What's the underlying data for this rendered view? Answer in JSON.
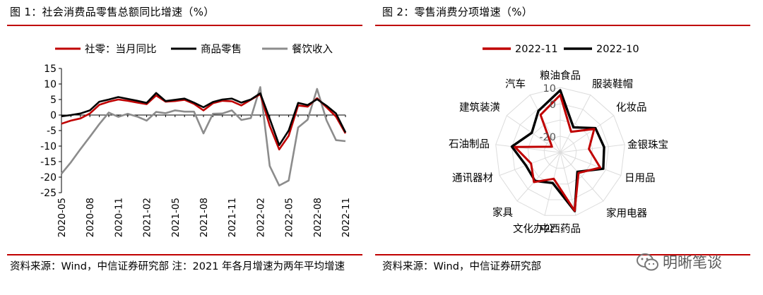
{
  "left_panel": {
    "title": "图 1：社会消费品零售总额同比增速（%）",
    "source": "资料来源：Wind，中信证券研究部 注：2021 年各月增速为两年平均增速"
  },
  "right_panel": {
    "title": "图 2：零售消费分项增速（%）",
    "source": "资料来源：Wind，中信证券研究部"
  },
  "watermark": {
    "text": "明晰笔谈",
    "icon": "wechat-icon"
  },
  "colors": {
    "red": "#c00000",
    "black": "#000000",
    "gray": "#8c8c8c",
    "rule": "#c00000"
  },
  "chart_data": [
    {
      "type": "line",
      "title": "图 1：社会消费品零售总额同比增速（%）",
      "legend_position": "top",
      "x": [
        "2020-05",
        "2020-06",
        "2020-07",
        "2020-08",
        "2020-09",
        "2020-10",
        "2020-11",
        "2020-12",
        "2021-01",
        "2021-02",
        "2021-03",
        "2021-04",
        "2021-05",
        "2021-06",
        "2021-07",
        "2021-08",
        "2021-09",
        "2021-10",
        "2021-11",
        "2021-12",
        "2022-01",
        "2022-02",
        "2022-03",
        "2022-04",
        "2022-05",
        "2022-06",
        "2022-07",
        "2022-08",
        "2022-09",
        "2022-10",
        "2022-11"
      ],
      "x_tick_labels": [
        "2020-05",
        "2020-08",
        "2020-11",
        "2021-02",
        "2021-05",
        "2021-08",
        "2021-11",
        "2022-02",
        "2022-05",
        "2022-08",
        "2022-11"
      ],
      "ylim": [
        -25,
        15
      ],
      "y_ticks": [
        15,
        10,
        5,
        0,
        -5,
        -10,
        -15,
        -20,
        -25
      ],
      "series": [
        {
          "name": "社零：当月同比",
          "color": "#c00000",
          "values": [
            -2.8,
            -1.8,
            -1.1,
            0.5,
            3.3,
            4.3,
            5.0,
            4.6,
            4.0,
            3.5,
            6.3,
            4.3,
            4.5,
            4.9,
            3.6,
            1.5,
            3.8,
            4.6,
            4.4,
            3.1,
            4.9,
            6.7,
            -3.5,
            -11.1,
            -6.7,
            3.1,
            2.7,
            5.4,
            2.5,
            -0.5,
            -5.9
          ]
        },
        {
          "name": "商品零售",
          "color": "#000000",
          "values": [
            -0.4,
            0.0,
            0.5,
            1.5,
            4.3,
            5.0,
            5.8,
            5.2,
            4.6,
            3.9,
            7.1,
            4.5,
            4.9,
            5.3,
            4.0,
            2.5,
            4.2,
            5.0,
            5.3,
            4.0,
            5.0,
            7.0,
            -1.2,
            -9.7,
            -5.0,
            3.9,
            3.2,
            5.1,
            3.0,
            0.5,
            -5.6
          ]
        },
        {
          "name": "餐饮收入",
          "color": "#8c8c8c",
          "values": [
            -18.9,
            -15.2,
            -11.0,
            -7.0,
            -2.9,
            0.8,
            -0.6,
            0.4,
            -0.5,
            -1.8,
            1.0,
            0.6,
            1.5,
            1.1,
            1.1,
            -5.9,
            0.4,
            0.5,
            1.5,
            -1.6,
            -1.0,
            9.0,
            -16.4,
            -22.7,
            -21.1,
            -4.0,
            -1.5,
            8.4,
            -1.7,
            -8.1,
            -8.4
          ]
        }
      ]
    },
    {
      "type": "radar",
      "title": "图 2：零售消费分项增速（%）",
      "legend_position": "top",
      "axis_labels": [
        "粮油食品",
        "服装鞋帽",
        "化妆品",
        "金银珠宝",
        "日用品",
        "家用电器",
        "中西药品",
        "文化办公",
        "家具",
        "通讯器材",
        "石油制品",
        "建筑装潢",
        "汽车"
      ],
      "tick_labels": [
        "10",
        "0",
        "-20"
      ],
      "r_range": [
        -30,
        10
      ],
      "series": [
        {
          "name": "2022-11",
          "color": "#c00000",
          "values": [
            5.4,
            -15.6,
            -4.6,
            -12.2,
            -3.7,
            -13.1,
            7.0,
            -13.3,
            -5.6,
            -10.8,
            -1.9,
            -23.8,
            -3.9
          ]
        },
        {
          "name": "2022-10",
          "color": "#000000",
          "values": [
            8.3,
            -12.5,
            -3.7,
            -2.8,
            -1.7,
            -14.1,
            7.2,
            -10.6,
            -6.6,
            -7.4,
            0.0,
            -8.7,
            -1.1
          ]
        }
      ]
    }
  ]
}
